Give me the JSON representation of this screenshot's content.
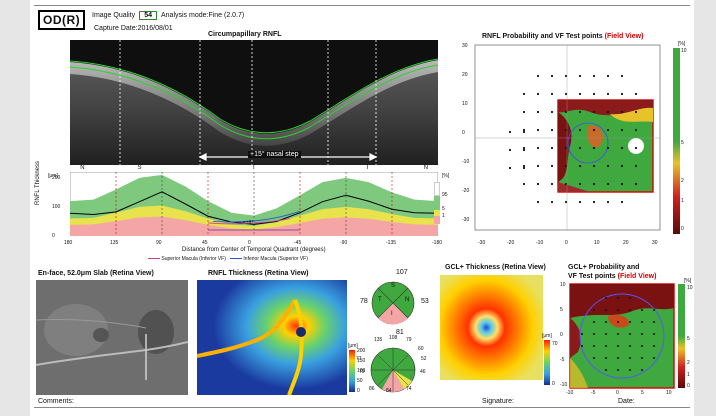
{
  "header": {
    "eye": "OD(R)",
    "quality_label": "Image Quality",
    "quality_value": "54",
    "mode": "Analysis mode:Fine (2.0.7)",
    "capture_date": "Capture Date:2016/08/01"
  },
  "titles": {
    "oct": "Circumpapillary RNFL",
    "prob_title": "RNFL Probability and VF Test points",
    "field_view": "(Field View)",
    "enface": "En-face, 52.0μm Slab (Retina View)",
    "rnfl_thick": "RNFL Thickness (Retina View)",
    "gcl_thick": "GCL+ Thickness (Retina View)",
    "gcl_prob_1": "GCL+ Probability and",
    "gcl_prob_2": "VF Test points"
  },
  "oct_annot": "+15° nasal step",
  "thickness_chart": {
    "ylabel": "RNFL Thickness",
    "unit": "[μm]",
    "quadrants": [
      "N",
      "S",
      "T",
      "I",
      "N"
    ],
    "xticks": [
      "180",
      "135",
      "90",
      "45",
      "0",
      "-45",
      "-90",
      "-135",
      "-180"
    ],
    "yticks": [
      "200",
      "100",
      "0"
    ],
    "xlabel": "Distance from Center of Temporal Quadrant (degrees)",
    "range_label": "=±8°",
    "legend": [
      "Superior Macula (Inferior VF)",
      "Inferior Macula (Superior VF)"
    ],
    "pct_unit": "[%]",
    "pct_ticks": [
      "95",
      "5",
      "1"
    ]
  },
  "chart_data": {
    "type": "line",
    "xlabel": "Distance from Center of Temporal Quadrant (degrees)",
    "ylabel": "RNFL Thickness",
    "xlim": [
      180,
      -180
    ],
    "ylim": [
      0,
      220
    ],
    "x": [
      180,
      157,
      135,
      112,
      90,
      67,
      45,
      22,
      0,
      -22,
      -45,
      -67,
      -90,
      -112,
      -135,
      -157,
      -180
    ],
    "series": [
      {
        "values": [
          78,
          74,
          83,
          118,
          152,
          110,
          68,
          48,
          40,
          50,
          80,
          118,
          140,
          120,
          92,
          80,
          78
        ]
      }
    ],
    "normal_band_upper": [
      120,
      125,
      160,
      200,
      210,
      170,
      120,
      80,
      70,
      95,
      140,
      185,
      200,
      185,
      150,
      125,
      120
    ]
  },
  "prob_axes": {
    "x": [
      "-30",
      "-20",
      "-10",
      "0",
      "10",
      "20",
      "30"
    ],
    "y": [
      "30",
      "20",
      "10",
      "0",
      "-10",
      "-20",
      "-30"
    ],
    "cbar_unit": "[%]",
    "cbar": [
      "10",
      "5",
      "2",
      "1",
      "0"
    ]
  },
  "gcl_axes": {
    "x": [
      "-10",
      "-5",
      "0",
      "5",
      "10"
    ],
    "y": [
      "10",
      "5",
      "0",
      "-5",
      "-10"
    ],
    "cbar_unit": "[%]",
    "cbar": [
      "10",
      "5",
      "2",
      "1",
      "0"
    ]
  },
  "thickness_cbar": {
    "unit": "[μm]",
    "ticks": [
      "200",
      "150",
      "100",
      "50",
      "0"
    ]
  },
  "gcl_cbar": {
    "unit": "[μm]",
    "ticks": [
      "70",
      "0"
    ]
  },
  "quadrant_values": {
    "top": "107",
    "left": "78",
    "right": "53",
    "bottom": "81",
    "S": "S",
    "T": "T",
    "N": "N",
    "I": "I"
  },
  "clock_values": [
    "135",
    "108",
    "79",
    "60",
    "77",
    "52",
    "70",
    "46",
    "86",
    "84",
    "74"
  ],
  "footer": {
    "comments": "Comments:",
    "signature": "Signature:",
    "date": "Date:"
  }
}
